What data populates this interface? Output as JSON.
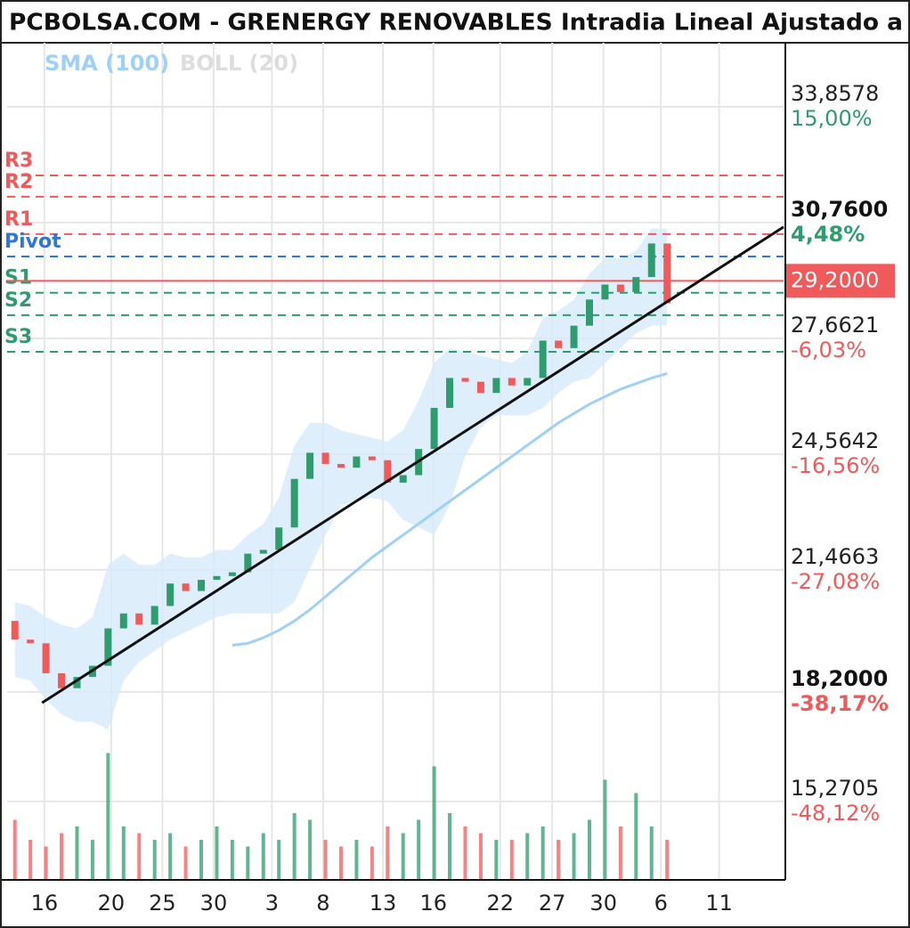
{
  "chart_data": {
    "type": "candlestick",
    "title": "PCBOLSA.COM - GRENERGY RENOVABLES Intradia Lineal Ajustado a",
    "x": [
      1,
      3,
      5,
      7,
      9,
      11,
      13,
      15,
      17,
      19,
      21,
      23,
      25,
      27,
      29,
      31,
      33,
      35,
      37,
      39,
      41,
      43,
      45,
      47,
      49,
      51,
      53,
      55,
      57,
      59,
      61,
      63,
      65,
      67,
      69,
      71,
      73,
      75,
      77,
      79,
      81,
      83,
      85
    ],
    "open": [
      20.1,
      19.6,
      19.5,
      18.7,
      18.3,
      18.6,
      18.9,
      19.9,
      20.3,
      20.0,
      20.5,
      21.1,
      20.9,
      21.2,
      21.3,
      21.4,
      21.9,
      22.0,
      22.6,
      23.9,
      24.6,
      24.3,
      24.2,
      24.5,
      24.4,
      23.8,
      24.0,
      24.7,
      25.8,
      26.6,
      26.5,
      26.2,
      26.6,
      26.4,
      26.6,
      27.6,
      27.4,
      28.0,
      28.7,
      29.1,
      28.9,
      29.3,
      30.2
    ],
    "high": {
      "value": 30.76,
      "label": "30,7600",
      "change": {
        "value": 4.48,
        "label": "4,48%"
      }
    },
    "low": {
      "value": 18.2,
      "label": "18,2000",
      "change": {
        "value": -38.17,
        "label": "-38,17%"
      }
    },
    "close": [
      19.6,
      19.5,
      18.7,
      18.3,
      18.6,
      18.9,
      19.9,
      20.3,
      20.0,
      20.5,
      21.1,
      20.9,
      21.2,
      21.3,
      21.4,
      21.9,
      22.0,
      22.6,
      23.9,
      24.6,
      24.3,
      24.2,
      24.5,
      24.4,
      23.8,
      24.0,
      24.7,
      25.8,
      26.6,
      26.5,
      26.2,
      26.6,
      26.4,
      26.6,
      27.6,
      27.4,
      28.0,
      28.7,
      29.1,
      28.9,
      29.3,
      30.2,
      28.6
    ],
    "volume": [
      45,
      30,
      25,
      35,
      40,
      30,
      95,
      40,
      35,
      30,
      35,
      25,
      30,
      40,
      30,
      25,
      35,
      30,
      50,
      45,
      30,
      25,
      30,
      25,
      40,
      35,
      45,
      85,
      50,
      40,
      35,
      30,
      30,
      35,
      40,
      30,
      35,
      45,
      75,
      40,
      65,
      40,
      30
    ],
    "volume_ylim": [
      0,
      100
    ],
    "up_color": "#2e9c6e",
    "down_color": "#f05a5a",
    "indicators": [
      {
        "name": "SMA (100)",
        "color": "#9fd0f5",
        "values": [
          null,
          null,
          null,
          null,
          null,
          null,
          null,
          null,
          null,
          null,
          null,
          null,
          null,
          null,
          19.45,
          19.5,
          19.65,
          19.85,
          20.1,
          20.4,
          20.75,
          21.1,
          21.45,
          21.8,
          22.1,
          22.4,
          22.7,
          23.0,
          23.3,
          23.6,
          23.9,
          24.2,
          24.5,
          24.8,
          25.1,
          25.4,
          25.65,
          25.9,
          26.1,
          26.3,
          26.45,
          26.6,
          26.72
        ]
      },
      {
        "name": "BOLL (20)",
        "color": "#dddddd",
        "fill": "#d6ebfa",
        "upper": [
          20.6,
          20.5,
          20.2,
          20.0,
          19.9,
          20.2,
          21.6,
          21.9,
          21.6,
          21.6,
          21.9,
          21.8,
          21.8,
          22.0,
          22.0,
          22.4,
          22.7,
          23.4,
          24.8,
          25.4,
          25.4,
          25.2,
          25.1,
          25.0,
          24.9,
          25.2,
          26.0,
          27.0,
          27.4,
          27.3,
          27.2,
          27.1,
          27.0,
          27.3,
          28.2,
          28.4,
          28.7,
          29.4,
          29.8,
          29.8,
          30.0,
          30.6,
          30.6
        ],
        "lower": [
          18.6,
          18.5,
          18.0,
          17.6,
          17.4,
          17.4,
          17.2,
          18.5,
          19.0,
          19.3,
          19.6,
          19.8,
          20.0,
          20.2,
          20.3,
          20.3,
          20.3,
          20.3,
          20.6,
          21.5,
          22.4,
          23.2,
          23.3,
          23.4,
          23.3,
          22.8,
          22.6,
          22.4,
          23.2,
          24.5,
          25.3,
          25.6,
          25.6,
          25.6,
          25.8,
          26.2,
          26.5,
          26.6,
          27.0,
          27.4,
          27.8,
          28.0,
          28.0
        ]
      }
    ],
    "levels": [
      {
        "label": "R3",
        "value": 32.02,
        "color": "#f05a5a"
      },
      {
        "label": "R2",
        "value": 31.45,
        "color": "#f05a5a"
      },
      {
        "label": "R1",
        "value": 30.45,
        "color": "#f05a5a"
      },
      {
        "label": "Pivot",
        "value": 29.85,
        "color": "#2f78d1"
      },
      {
        "label": "S1",
        "value": 28.88,
        "color": "#2e9c6e"
      },
      {
        "label": "S2",
        "value": 28.28,
        "color": "#2e9c6e"
      },
      {
        "label": "S3",
        "value": 27.3,
        "color": "#2e9c6e"
      }
    ],
    "trendline": {
      "x": [
        4.5,
        100
      ],
      "values": [
        17.91,
        30.64
      ]
    },
    "last_price": {
      "value": 29.2,
      "label": "29,2000"
    },
    "xlim": [
      0,
      100
    ],
    "xticks": [
      {
        "value": 4.8,
        "label": "16"
      },
      {
        "value": 13.4,
        "label": "20"
      },
      {
        "value": 20,
        "label": "25"
      },
      {
        "value": 26.6,
        "label": "30"
      },
      {
        "value": 34.1,
        "label": "3"
      },
      {
        "value": 40.7,
        "label": "8"
      },
      {
        "value": 48.4,
        "label": "13"
      },
      {
        "value": 54.9,
        "label": "16"
      },
      {
        "value": 63.5,
        "label": "22"
      },
      {
        "value": 70.2,
        "label": "27"
      },
      {
        "value": 76.8,
        "label": "30"
      },
      {
        "value": 84.2,
        "label": "6"
      },
      {
        "value": 91.7,
        "label": "11"
      }
    ],
    "ylim": [
      13.17,
      35.57
    ],
    "yticks": [
      {
        "value": 33.8578,
        "label": "33,8578"
      },
      {
        "value": 27.6621,
        "label": "27,6621"
      },
      {
        "value": 24.5642,
        "label": "24,5642"
      },
      {
        "value": 21.4663,
        "label": "21,4663"
      },
      {
        "value": 15.2705,
        "label": "15,2705"
      }
    ],
    "ytick_changes": [
      {
        "value": 15,
        "label": "15,00%"
      },
      {
        "value": -6.03,
        "label": "-6,03%"
      },
      {
        "value": -16.56,
        "label": "-16,56%"
      },
      {
        "value": -27.08,
        "label": "-27,08%"
      },
      {
        "value": -48.12,
        "label": "-48,12%"
      }
    ],
    "grid": true
  }
}
